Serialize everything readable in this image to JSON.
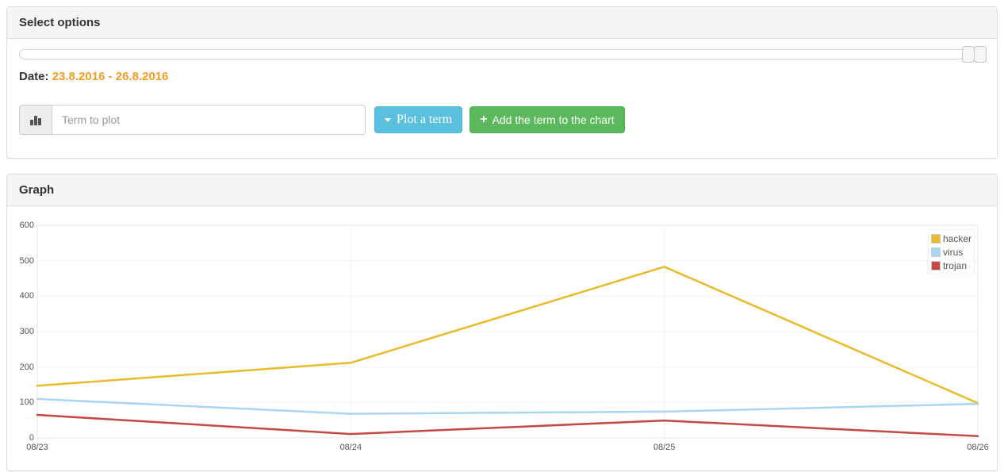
{
  "select_options_panel": {
    "title": "Select options",
    "date_label": "Date:",
    "date_range": "23.8.2016 - 26.8.2016",
    "term_input": {
      "value": "",
      "placeholder": "Term to plot"
    },
    "plot_button_label": "Plot a term",
    "add_button_label": "Add the term to the chart",
    "icons": {
      "input_addon": "bar-chart-icon",
      "plot_button": "caret-down-icon",
      "add_button": "plus-icon"
    }
  },
  "graph_panel": {
    "title": "Graph"
  },
  "colors": {
    "plot_button_bg": "#5bc0de",
    "plot_button_border": "#46b8da",
    "add_button_bg": "#5cb85c",
    "add_button_border": "#4cae4c",
    "date_range_text": "#f59b22",
    "panel_heading_bg": "#f5f5f5",
    "panel_border": "#dddddd",
    "tick_label": "#545454",
    "gridline": "#f2f2f2",
    "plot_border": "#e7e7e7"
  },
  "chart_data": {
    "type": "line",
    "title": "",
    "xlabel": "",
    "ylabel": "",
    "x": [
      "08/23",
      "08/24",
      "08/25",
      "08/26"
    ],
    "series": [
      {
        "name": "hacker",
        "color": "#e9bb2b",
        "values": [
          147,
          212,
          483,
          98
        ]
      },
      {
        "name": "virus",
        "color": "#a8d5f4",
        "values": [
          110,
          68,
          74,
          96
        ]
      },
      {
        "name": "trojan",
        "color": "#c74742",
        "values": [
          65,
          11,
          49,
          5
        ]
      }
    ],
    "ylim": [
      0,
      600
    ],
    "yticks": [
      0,
      100,
      200,
      300,
      400,
      500,
      600
    ],
    "grid": true,
    "legend_position": "top-right"
  }
}
